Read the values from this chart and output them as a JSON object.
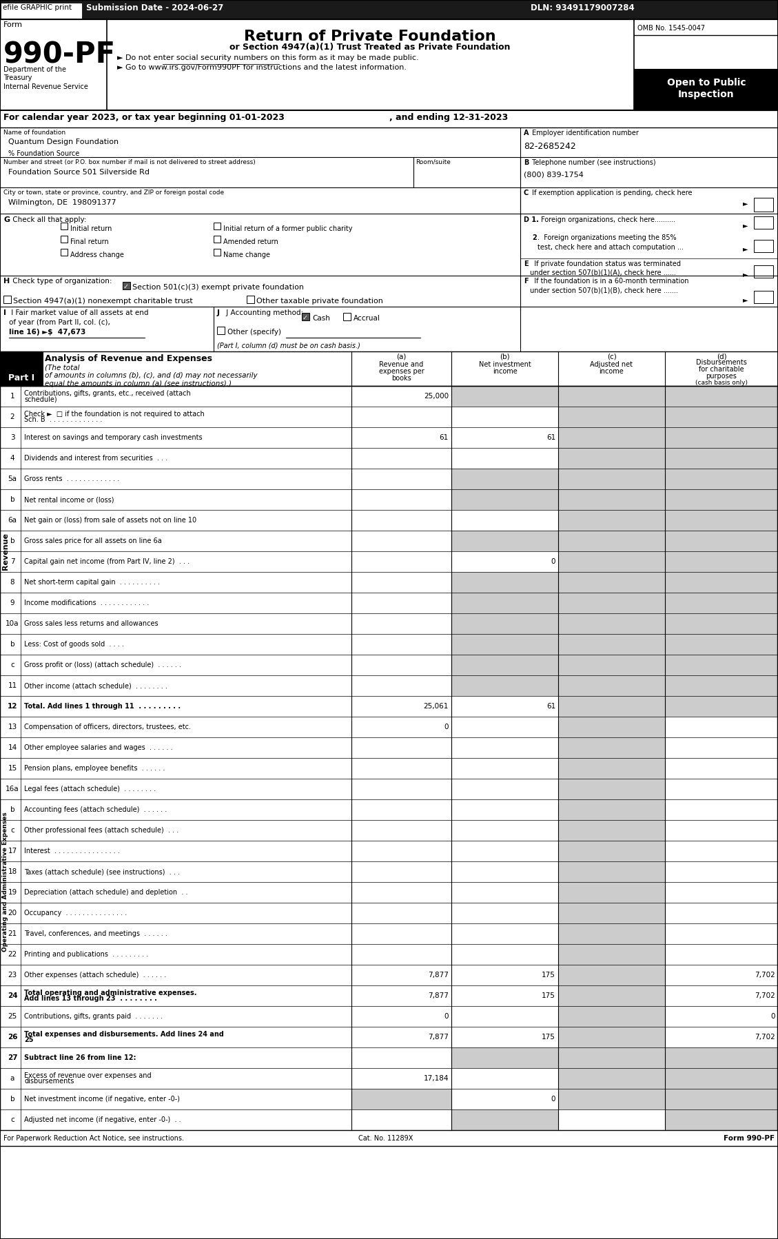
{
  "title_form": "990-PF",
  "title_main": "Return of Private Foundation",
  "title_sub": "or Section 4947(a)(1) Trust Treated as Private Foundation",
  "bullet1": "► Do not enter social security numbers on this form as it may be made public.",
  "bullet2": "► Go to www.irs.gov/Form990PF for instructions and the latest information.",
  "year": "2023",
  "omb": "OMB No. 1545-0047",
  "dept1": "Department of the",
  "dept2": "Treasury",
  "dept3": "Internal Revenue Service",
  "form_label": "Form",
  "efile_text": "efile GRAPHIC print",
  "submission": "Submission Date - 2024-06-27",
  "dln": "DLN: 93491179007284",
  "cal_year": "For calendar year 2023, or tax year beginning 01-01-2023",
  "cal_end": ", and ending 12-31-2023",
  "name_label": "Name of foundation",
  "name_val": "Quantum Design Foundation",
  "pct_label": "% Foundation Source",
  "addr_label": "Number and street (or P.O. box number if mail is not delivered to street address)",
  "room_label": "Room/suite",
  "addr_val": "Foundation Source 501 Silverside Rd",
  "city_label": "City or town, state or province, country, and ZIP or foreign postal code",
  "city_val": "Wilmington, DE  198091377",
  "ein_label": "A Employer identification number",
  "ein_val": "82-2685242",
  "phone_label": "B Telephone number (see instructions)",
  "phone_val": "(800) 839-1754",
  "exempt_label": "C If exemption application is pending, check here",
  "d1_label": "D 1. Foreign organizations, check here..........",
  "d2_label": "2.  Foreign organizations meeting the 85% test, check here and attach computation ...",
  "e_label": "E  If private foundation status was terminated under section 507(b)(1)(A), check here ......",
  "f_label": "F  If the foundation is in a 60-month termination under section 507(b)(1)(B), check here .......",
  "g_label": "G Check all that apply:",
  "h_opt1": "Section 501(c)(3) exempt private foundation",
  "h_opt2": "Section 4947(a)(1) nonexempt charitable trust",
  "h_opt3": "Other taxable private foundation",
  "i_text1": "I Fair market value of all assets at end",
  "i_text2": "of year (from Part II, col. (c),",
  "i_text3": "line 16) ►$  47,673",
  "j_text": "J Accounting method:",
  "j_cash": "Cash",
  "j_accrual": "Accrual",
  "j_other": "Other (specify)",
  "j_note": "(Part I, column (d) must be on cash basis.)",
  "part1_title": "Analysis of Revenue and Expenses",
  "part1_sub1": "(The total",
  "part1_sub2": "of amounts in columns (b), (c), and (d) may not necessarily",
  "part1_sub3": "equal the amounts in column (a) (see instructions).)",
  "col_a_lbl": "(a)",
  "col_a1": "Revenue and",
  "col_a2": "expenses per",
  "col_a3": "books",
  "col_b_lbl": "(b)",
  "col_b1": "Net investment",
  "col_b2": "income",
  "col_c_lbl": "(c)",
  "col_c1": "Adjusted net",
  "col_c2": "income",
  "col_d_lbl": "(d)",
  "col_d1": "Disbursements",
  "col_d2": "for charitable",
  "col_d3": "purposes",
  "col_d4": "(cash basis only)",
  "revenue_rows": [
    {
      "num": "1",
      "label": "Contributions, gifts, grants, etc., received (attach\nschedule)",
      "a": "25,000",
      "b": "",
      "c": "",
      "d": "",
      "bold": false,
      "shade_b": true
    },
    {
      "num": "2",
      "label": "Check ►  □ if the foundation is not required to attach\nSch. B  . . . . . . . . . . . . .",
      "a": "",
      "b": "",
      "c": "",
      "d": "",
      "bold": false,
      "shade_b": false
    },
    {
      "num": "3",
      "label": "Interest on savings and temporary cash investments",
      "a": "61",
      "b": "61",
      "c": "",
      "d": "",
      "bold": false,
      "shade_b": false
    },
    {
      "num": "4",
      "label": "Dividends and interest from securities  . . .",
      "a": "",
      "b": "",
      "c": "",
      "d": "",
      "bold": false,
      "shade_b": false
    },
    {
      "num": "5a",
      "label": "Gross rents  . . . . . . . . . . . . .",
      "a": "",
      "b": "",
      "c": "",
      "d": "",
      "bold": false,
      "shade_b": true
    },
    {
      "num": "b",
      "label": "Net rental income or (loss)",
      "a": "",
      "b": "",
      "c": "",
      "d": "",
      "bold": false,
      "shade_b": true
    },
    {
      "num": "6a",
      "label": "Net gain or (loss) from sale of assets not on line 10",
      "a": "",
      "b": "",
      "c": "",
      "d": "",
      "bold": false,
      "shade_b": false
    },
    {
      "num": "b",
      "label": "Gross sales price for all assets on line 6a",
      "a": "",
      "b": "",
      "c": "",
      "d": "",
      "bold": false,
      "shade_b": true
    },
    {
      "num": "7",
      "label": "Capital gain net income (from Part IV, line 2)  . . .",
      "a": "",
      "b": "0",
      "c": "",
      "d": "",
      "bold": false,
      "shade_b": false
    },
    {
      "num": "8",
      "label": "Net short-term capital gain  . . . . . . . . . .",
      "a": "",
      "b": "",
      "c": "",
      "d": "",
      "bold": false,
      "shade_b": true
    },
    {
      "num": "9",
      "label": "Income modifications  . . . . . . . . . . . .",
      "a": "",
      "b": "",
      "c": "",
      "d": "",
      "bold": false,
      "shade_b": true
    },
    {
      "num": "10a",
      "label": "Gross sales less returns and allowances",
      "a": "",
      "b": "",
      "c": "",
      "d": "",
      "bold": false,
      "shade_b": true
    },
    {
      "num": "b",
      "label": "Less: Cost of goods sold  . . . .",
      "a": "",
      "b": "",
      "c": "",
      "d": "",
      "bold": false,
      "shade_b": true
    },
    {
      "num": "c",
      "label": "Gross profit or (loss) (attach schedule)  . . . . . .",
      "a": "",
      "b": "",
      "c": "",
      "d": "",
      "bold": false,
      "shade_b": true
    },
    {
      "num": "11",
      "label": "Other income (attach schedule)  . . . . . . . .",
      "a": "",
      "b": "",
      "c": "",
      "d": "",
      "bold": false,
      "shade_b": true
    },
    {
      "num": "12",
      "label": "Total. Add lines 1 through 11  . . . . . . . . .",
      "a": "25,061",
      "b": "61",
      "c": "",
      "d": "",
      "bold": true,
      "shade_b": false
    }
  ],
  "expense_rows": [
    {
      "num": "13",
      "label": "Compensation of officers, directors, trustees, etc.",
      "a": "0",
      "b": "",
      "c": "",
      "d": "",
      "bold": false
    },
    {
      "num": "14",
      "label": "Other employee salaries and wages  . . . . . .",
      "a": "",
      "b": "",
      "c": "",
      "d": "",
      "bold": false
    },
    {
      "num": "15",
      "label": "Pension plans, employee benefits  . . . . . .",
      "a": "",
      "b": "",
      "c": "",
      "d": "",
      "bold": false
    },
    {
      "num": "16a",
      "label": "Legal fees (attach schedule)  . . . . . . . .",
      "a": "",
      "b": "",
      "c": "",
      "d": "",
      "bold": false
    },
    {
      "num": "b",
      "label": "Accounting fees (attach schedule)  . . . . . .",
      "a": "",
      "b": "",
      "c": "",
      "d": "",
      "bold": false
    },
    {
      "num": "c",
      "label": "Other professional fees (attach schedule)  . . .",
      "a": "",
      "b": "",
      "c": "",
      "d": "",
      "bold": false
    },
    {
      "num": "17",
      "label": "Interest  . . . . . . . . . . . . . . . .",
      "a": "",
      "b": "",
      "c": "",
      "d": "",
      "bold": false
    },
    {
      "num": "18",
      "label": "Taxes (attach schedule) (see instructions)  . . .",
      "a": "",
      "b": "",
      "c": "",
      "d": "",
      "bold": false
    },
    {
      "num": "19",
      "label": "Depreciation (attach schedule) and depletion  . .",
      "a": "",
      "b": "",
      "c": "",
      "d": "",
      "bold": false
    },
    {
      "num": "20",
      "label": "Occupancy  . . . . . . . . . . . . . . .",
      "a": "",
      "b": "",
      "c": "",
      "d": "",
      "bold": false
    },
    {
      "num": "21",
      "label": "Travel, conferences, and meetings  . . . . . .",
      "a": "",
      "b": "",
      "c": "",
      "d": "",
      "bold": false
    },
    {
      "num": "22",
      "label": "Printing and publications  . . . . . . . . .",
      "a": "",
      "b": "",
      "c": "",
      "d": "",
      "bold": false
    },
    {
      "num": "23",
      "label": "Other expenses (attach schedule)  . . . . . .",
      "a": "7,877",
      "b": "175",
      "c": "",
      "d": "7,702",
      "bold": false
    },
    {
      "num": "24",
      "label": "Total operating and administrative expenses.\nAdd lines 13 through 23  . . . . . . . .",
      "a": "7,877",
      "b": "175",
      "c": "",
      "d": "7,702",
      "bold": true
    },
    {
      "num": "25",
      "label": "Contributions, gifts, grants paid  . . . . . . .",
      "a": "0",
      "b": "",
      "c": "",
      "d": "0",
      "bold": false
    },
    {
      "num": "26",
      "label": "Total expenses and disbursements. Add lines 24 and\n25",
      "a": "7,877",
      "b": "175",
      "c": "",
      "d": "7,702",
      "bold": true
    }
  ],
  "bottom_rows": [
    {
      "num": "27",
      "label": "Subtract line 26 from line 12:",
      "a": "",
      "b": "",
      "c": "",
      "d": "",
      "bold": true
    },
    {
      "num": "a",
      "label": "Excess of revenue over expenses and\ndisbursements",
      "a": "17,184",
      "b": "",
      "c": "",
      "d": "",
      "bold": false
    },
    {
      "num": "b",
      "label": "Net investment income (if negative, enter -0-)",
      "a": "",
      "b": "0",
      "c": "",
      "d": "",
      "bold": false
    },
    {
      "num": "c",
      "label": "Adjusted net income (if negative, enter -0-)  . .",
      "a": "",
      "b": "",
      "c": "",
      "d": "",
      "bold": false
    }
  ],
  "footer_left": "For Paperwork Reduction Act Notice, see instructions.",
  "footer_cat": "Cat. No. 11289X",
  "footer_right": "Form 990-PF"
}
